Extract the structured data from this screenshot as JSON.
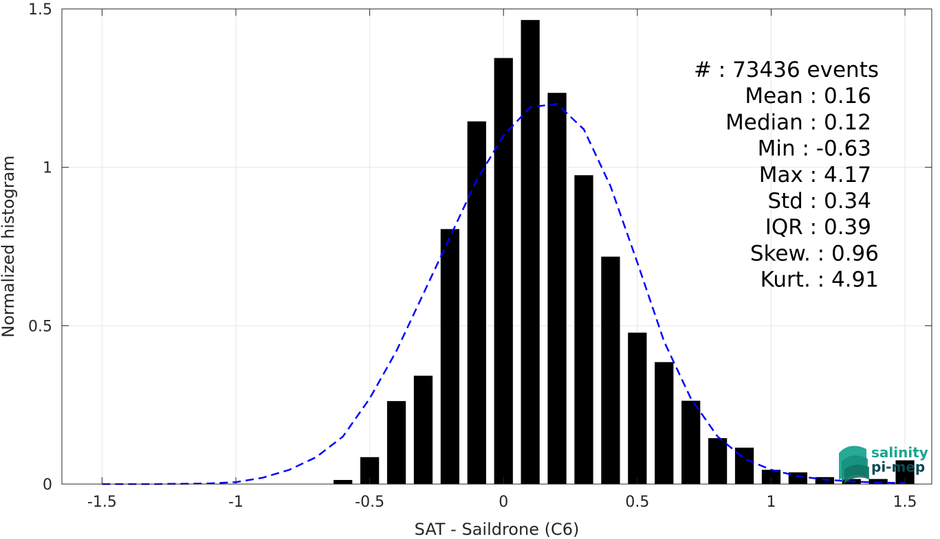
{
  "chart_data": {
    "type": "bar",
    "xlabel": "SAT - Saildrone (C6)",
    "ylabel": "Normalized histogram",
    "xlim": [
      -1.65,
      1.6
    ],
    "ylim": [
      0,
      1.5
    ],
    "xticks": [
      -1.5,
      -1,
      -0.5,
      0,
      0.5,
      1,
      1.5
    ],
    "xtick_labels": [
      "-1.5",
      "-1",
      "-0.5",
      "0",
      "0.5",
      "1",
      "1.5"
    ],
    "yticks": [
      0,
      0.5,
      1,
      1.5
    ],
    "ytick_labels": [
      "0",
      "0.5",
      "1",
      "1.5"
    ],
    "grid": true,
    "bar_width": 0.07,
    "bars": {
      "x": [
        -0.6,
        -0.5,
        -0.4,
        -0.3,
        -0.2,
        -0.1,
        0.0,
        0.1,
        0.2,
        0.3,
        0.4,
        0.5,
        0.6,
        0.7,
        0.8,
        0.9,
        1.0,
        1.1,
        1.2,
        1.3,
        1.4,
        1.5
      ],
      "values": [
        0.013,
        0.085,
        0.262,
        0.342,
        0.805,
        1.145,
        1.345,
        1.465,
        1.235,
        0.975,
        0.718,
        0.478,
        0.385,
        0.263,
        0.145,
        0.115,
        0.045,
        0.037,
        0.022,
        0.016,
        0.016,
        0.075
      ],
      "color": "#000000"
    },
    "fit_curve": {
      "style": "dashed",
      "color": "#0000ff",
      "x": [
        -1.5,
        -1.3,
        -1.1,
        -1.0,
        -0.9,
        -0.8,
        -0.7,
        -0.6,
        -0.5,
        -0.4,
        -0.3,
        -0.2,
        -0.1,
        0.0,
        0.1,
        0.2,
        0.3,
        0.4,
        0.5,
        0.6,
        0.7,
        0.8,
        0.9,
        1.0,
        1.1,
        1.2,
        1.3,
        1.4,
        1.5
      ],
      "y": [
        0.0,
        0.0,
        0.002,
        0.006,
        0.02,
        0.045,
        0.085,
        0.15,
        0.27,
        0.42,
        0.6,
        0.78,
        0.96,
        1.1,
        1.19,
        1.2,
        1.12,
        0.94,
        0.7,
        0.45,
        0.27,
        0.15,
        0.08,
        0.045,
        0.025,
        0.014,
        0.008,
        0.005,
        0.003
      ]
    },
    "annotations": [
      "#  : 73436 events",
      "Mean : 0.16",
      "Median : 0.12",
      "Min : -0.63",
      "Max : 4.17",
      "Std : 0.34",
      "IQR : 0.39",
      "Skew. : 0.96",
      "Kurt. : 4.91"
    ]
  },
  "logo": {
    "line1": "salinity",
    "line2": "pi-mep",
    "colors": {
      "teal": "#1aa58f",
      "dark": "#0c4a52"
    }
  }
}
